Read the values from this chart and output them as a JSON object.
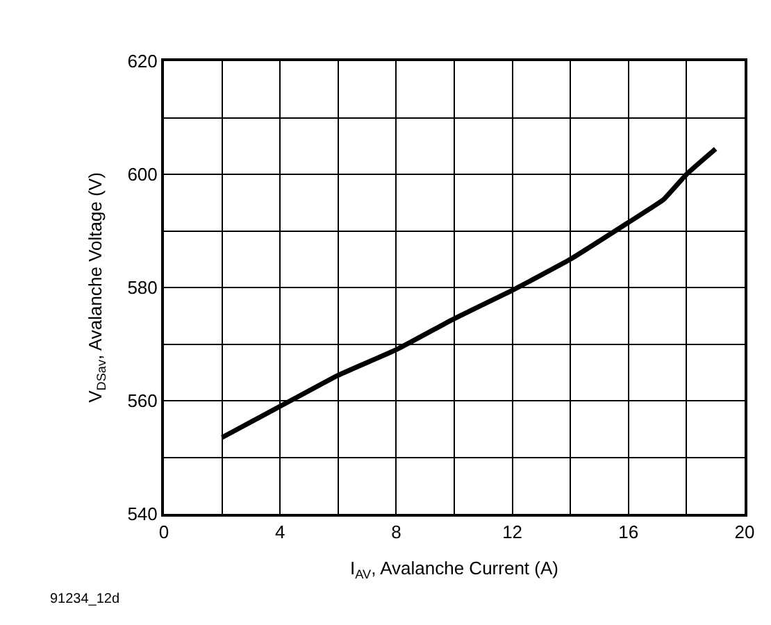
{
  "chart_data": {
    "type": "line",
    "xlabel": "I$_{AV}$, Avalanche Current (A)",
    "ylabel": "V$_{DSav}$, Avalanche Voltage (V)",
    "annotations": [
      "91234_12d"
    ],
    "x": [
      2,
      4,
      6,
      8,
      10,
      12,
      14,
      16,
      17.2,
      18,
      19
    ],
    "series": [
      {
        "color": "#000000",
        "values": [
          553.5,
          559,
          564.5,
          569,
          574.5,
          579.5,
          585,
          591.5,
          595.5,
          600,
          604.5
        ]
      }
    ],
    "xlim": [
      0,
      20
    ],
    "xticks": [
      0,
      {
        "value": 2,
        "label": null
      },
      4,
      {
        "value": 6,
        "label": null
      },
      8,
      {
        "value": 10,
        "label": null
      },
      12,
      {
        "value": 14,
        "label": null
      },
      16,
      {
        "value": 18,
        "label": null
      },
      20
    ],
    "ylim": [
      540,
      620
    ],
    "yticks": [
      540,
      {
        "value": 550,
        "label": null
      },
      560,
      {
        "value": 570,
        "label": null
      },
      580,
      {
        "value": 590,
        "label": null
      },
      600,
      {
        "value": 610,
        "label": null
      },
      620
    ],
    "grid": true,
    "marker": "none",
    "line_style": "solid"
  }
}
